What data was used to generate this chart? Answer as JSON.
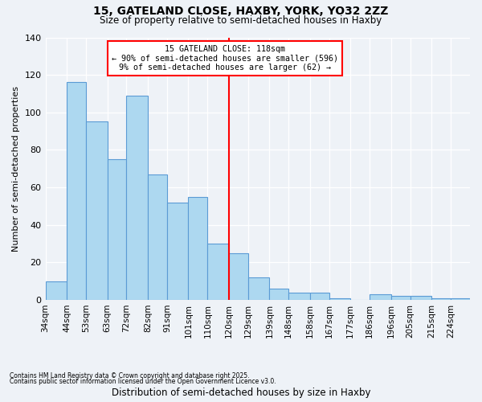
{
  "title1": "15, GATELAND CLOSE, HAXBY, YORK, YO32 2ZZ",
  "title2": "Size of property relative to semi-detached houses in Haxby",
  "xlabel": "Distribution of semi-detached houses by size in Haxby",
  "ylabel": "Number of semi-detached properties",
  "bin_labels": [
    "34sqm",
    "44sqm",
    "53sqm",
    "63sqm",
    "72sqm",
    "82sqm",
    "91sqm",
    "101sqm",
    "110sqm",
    "120sqm",
    "129sqm",
    "139sqm",
    "148sqm",
    "158sqm",
    "167sqm",
    "177sqm",
    "186sqm",
    "196sqm",
    "205sqm",
    "215sqm",
    "224sqm"
  ],
  "bin_edges": [
    34,
    44,
    53,
    63,
    72,
    82,
    91,
    101,
    110,
    120,
    129,
    139,
    148,
    158,
    167,
    177,
    186,
    196,
    205,
    215,
    224
  ],
  "bin_widths": [
    10,
    9,
    10,
    9,
    10,
    9,
    10,
    9,
    10,
    9,
    10,
    9,
    10,
    9,
    10,
    9,
    10,
    9,
    10,
    9,
    9
  ],
  "heights": [
    10,
    116,
    95,
    75,
    109,
    67,
    52,
    55,
    30,
    25,
    12,
    6,
    4,
    4,
    1,
    0,
    3,
    2,
    2,
    1,
    1
  ],
  "bar_color": "#add8f0",
  "bar_edge_color": "#5b9bd5",
  "red_line_x": 120,
  "ylim": [
    0,
    140
  ],
  "yticks": [
    0,
    20,
    40,
    60,
    80,
    100,
    120,
    140
  ],
  "annotation_title": "15 GATELAND CLOSE: 118sqm",
  "annotation_line1": "← 90% of semi-detached houses are smaller (596)",
  "annotation_line2": "9% of semi-detached houses are larger (62) →",
  "footnote1": "Contains HM Land Registry data © Crown copyright and database right 2025.",
  "footnote2": "Contains public sector information licensed under the Open Government Licence v3.0.",
  "background_color": "#eef2f7"
}
